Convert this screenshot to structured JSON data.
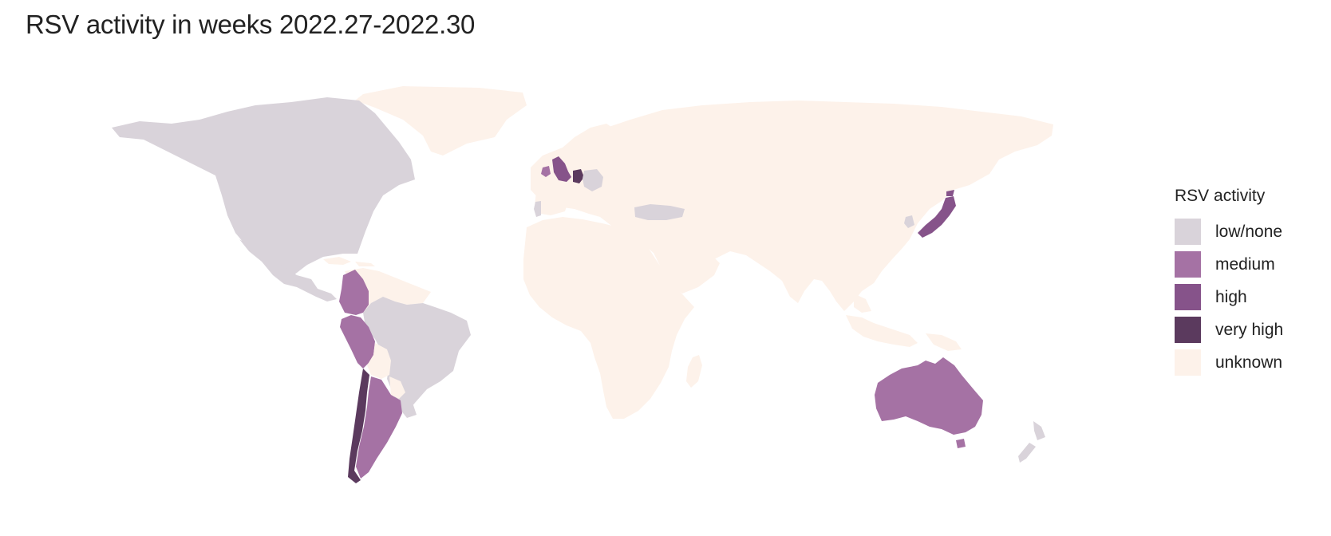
{
  "title": "RSV activity in weeks 2022.27-2022.30",
  "legend": {
    "title": "RSV activity",
    "items": [
      {
        "key": "low",
        "label": "low/none",
        "color": "#d9d3da"
      },
      {
        "key": "medium",
        "label": "medium",
        "color": "#a572a4"
      },
      {
        "key": "high",
        "label": "high",
        "color": "#86538a"
      },
      {
        "key": "veryhigh",
        "label": "very high",
        "color": "#5b3a5e"
      },
      {
        "key": "unknown",
        "label": "unknown",
        "color": "#fdf2ea"
      }
    ]
  },
  "regions": [
    {
      "name": "North America (USA & Canada)",
      "level": "low"
    },
    {
      "name": "Greenland",
      "level": "unknown"
    },
    {
      "name": "Mexico & Central America",
      "level": "low"
    },
    {
      "name": "Caribbean & Northern South America",
      "level": "unknown"
    },
    {
      "name": "Colombia",
      "level": "medium"
    },
    {
      "name": "Peru",
      "level": "medium"
    },
    {
      "name": "Brazil",
      "level": "low"
    },
    {
      "name": "Bolivia",
      "level": "unknown"
    },
    {
      "name": "Paraguay",
      "level": "unknown"
    },
    {
      "name": "Uruguay",
      "level": "low"
    },
    {
      "name": "Argentina",
      "level": "medium"
    },
    {
      "name": "Chile",
      "level": "veryhigh"
    },
    {
      "name": "United Kingdom",
      "level": "high"
    },
    {
      "name": "Ireland",
      "level": "medium"
    },
    {
      "name": "Netherlands",
      "level": "veryhigh"
    },
    {
      "name": "Germany",
      "level": "low"
    },
    {
      "name": "Portugal",
      "level": "low"
    },
    {
      "name": "Turkey",
      "level": "low"
    },
    {
      "name": "Eurasia",
      "level": "unknown"
    },
    {
      "name": "Africa",
      "level": "unknown"
    },
    {
      "name": "Madagascar",
      "level": "unknown"
    },
    {
      "name": "Japan",
      "level": "high"
    },
    {
      "name": "South Korea",
      "level": "low"
    },
    {
      "name": "Southeast Asia & Indonesia",
      "level": "unknown"
    },
    {
      "name": "Papua New Guinea",
      "level": "unknown"
    },
    {
      "name": "Australia",
      "level": "medium"
    },
    {
      "name": "New Zealand",
      "level": "low"
    }
  ]
}
